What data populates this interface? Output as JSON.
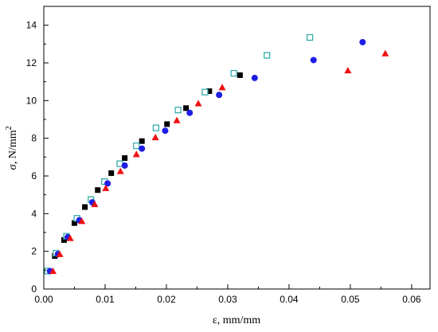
{
  "chart_data": {
    "type": "scatter",
    "title": "",
    "xlabel": "ε, mm/mm",
    "ylabel": "σ, N/mm",
    "ylabel_superscript": "2",
    "xlim": [
      0,
      0.063
    ],
    "ylim": [
      0,
      15
    ],
    "x_ticks": [
      0.0,
      0.01,
      0.02,
      0.03,
      0.04,
      0.05,
      0.06
    ],
    "x_tick_labels": [
      "0.00",
      "0.01",
      "0.02",
      "0.03",
      "0.04",
      "0.05",
      "0.06"
    ],
    "y_ticks": [
      0,
      2,
      4,
      6,
      8,
      10,
      12,
      14
    ],
    "y_tick_labels": [
      "0",
      "2",
      "4",
      "6",
      "8",
      "10",
      "12",
      "14"
    ],
    "grid": false,
    "legend": "none",
    "series": [
      {
        "marker": "square-filled",
        "color": "#000000",
        "points": [
          [
            0.0005,
            0.95
          ],
          [
            0.0018,
            1.75
          ],
          [
            0.0033,
            2.6
          ],
          [
            0.005,
            3.5
          ],
          [
            0.0067,
            4.35
          ],
          [
            0.0088,
            5.25
          ],
          [
            0.011,
            6.15
          ],
          [
            0.0132,
            6.95
          ],
          [
            0.016,
            7.85
          ],
          [
            0.0201,
            8.75
          ],
          [
            0.0232,
            9.6
          ],
          [
            0.027,
            10.5
          ],
          [
            0.032,
            11.35
          ]
        ]
      },
      {
        "marker": "square-open",
        "color": "#2aa6a6",
        "points": [
          [
            0.0006,
            0.95
          ],
          [
            0.002,
            1.9
          ],
          [
            0.0037,
            2.8
          ],
          [
            0.0054,
            3.75
          ],
          [
            0.0077,
            4.75
          ],
          [
            0.0099,
            5.7
          ],
          [
            0.0124,
            6.65
          ],
          [
            0.0151,
            7.6
          ],
          [
            0.0183,
            8.55
          ],
          [
            0.0219,
            9.5
          ],
          [
            0.0263,
            10.45
          ],
          [
            0.031,
            11.45
          ],
          [
            0.0364,
            12.4
          ],
          [
            0.0434,
            13.35
          ]
        ]
      },
      {
        "marker": "circle-filled",
        "color": "#1e1ee6",
        "points": [
          [
            0.001,
            0.95
          ],
          [
            0.0023,
            1.85
          ],
          [
            0.0039,
            2.75
          ],
          [
            0.0058,
            3.65
          ],
          [
            0.0079,
            4.6
          ],
          [
            0.0104,
            5.6
          ],
          [
            0.0132,
            6.55
          ],
          [
            0.016,
            7.45
          ],
          [
            0.0198,
            8.4
          ],
          [
            0.0238,
            9.35
          ],
          [
            0.0286,
            10.3
          ],
          [
            0.0344,
            11.2
          ],
          [
            0.044,
            12.15
          ],
          [
            0.052,
            13.1
          ]
        ]
      },
      {
        "marker": "triangle-filled",
        "color": "#ee1111",
        "points": [
          [
            0.0015,
            0.95
          ],
          [
            0.0026,
            1.85
          ],
          [
            0.0043,
            2.7
          ],
          [
            0.0062,
            3.6
          ],
          [
            0.0083,
            4.5
          ],
          [
            0.0101,
            5.35
          ],
          [
            0.0125,
            6.25
          ],
          [
            0.0151,
            7.15
          ],
          [
            0.0182,
            8.05
          ],
          [
            0.0217,
            8.95
          ],
          [
            0.0252,
            9.85
          ],
          [
            0.0291,
            10.7
          ],
          [
            0.0496,
            11.6
          ],
          [
            0.0557,
            12.5
          ]
        ]
      }
    ]
  }
}
